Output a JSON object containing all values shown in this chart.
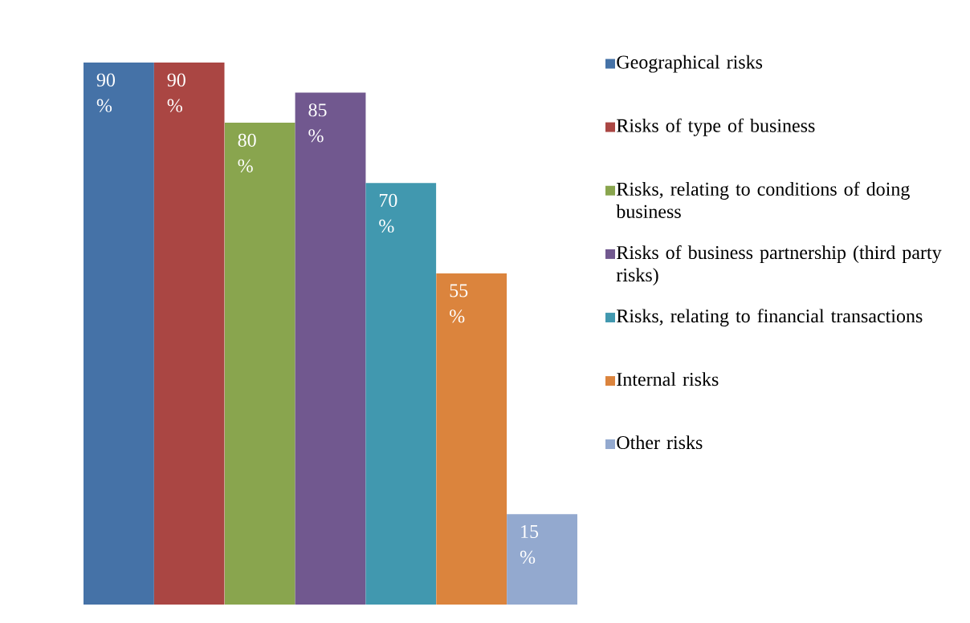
{
  "chart_data": {
    "type": "bar",
    "categories": [
      null
    ],
    "ylim": [
      0,
      90
    ],
    "legend": "right",
    "series": [
      {
        "name": "Geographical risks",
        "color": "#4572a7",
        "values": [
          90
        ],
        "value_labels": [
          "90 %"
        ]
      },
      {
        "name": "Risks of type of business",
        "color": "#aa4643",
        "values": [
          90
        ],
        "value_labels": [
          "90 %"
        ]
      },
      {
        "name": "Risks, relating to conditions of doing business",
        "color": "#89a54e",
        "values": [
          80
        ],
        "value_labels": [
          "80 %"
        ]
      },
      {
        "name": "Risks of business partnership (third party risks)",
        "color": "#71588f",
        "values": [
          85
        ],
        "value_labels": [
          "85 %"
        ]
      },
      {
        "name": "Risks, relating to financial transactions",
        "color": "#4198af",
        "values": [
          70
        ],
        "value_labels": [
          "70 %"
        ]
      },
      {
        "name": "Internal risks",
        "color": "#db843d",
        "values": [
          55
        ],
        "value_labels": [
          "55 %"
        ]
      },
      {
        "name": "Other risks",
        "color": "#93a9cf",
        "values": [
          15
        ],
        "value_labels": [
          "15 %"
        ]
      }
    ]
  }
}
